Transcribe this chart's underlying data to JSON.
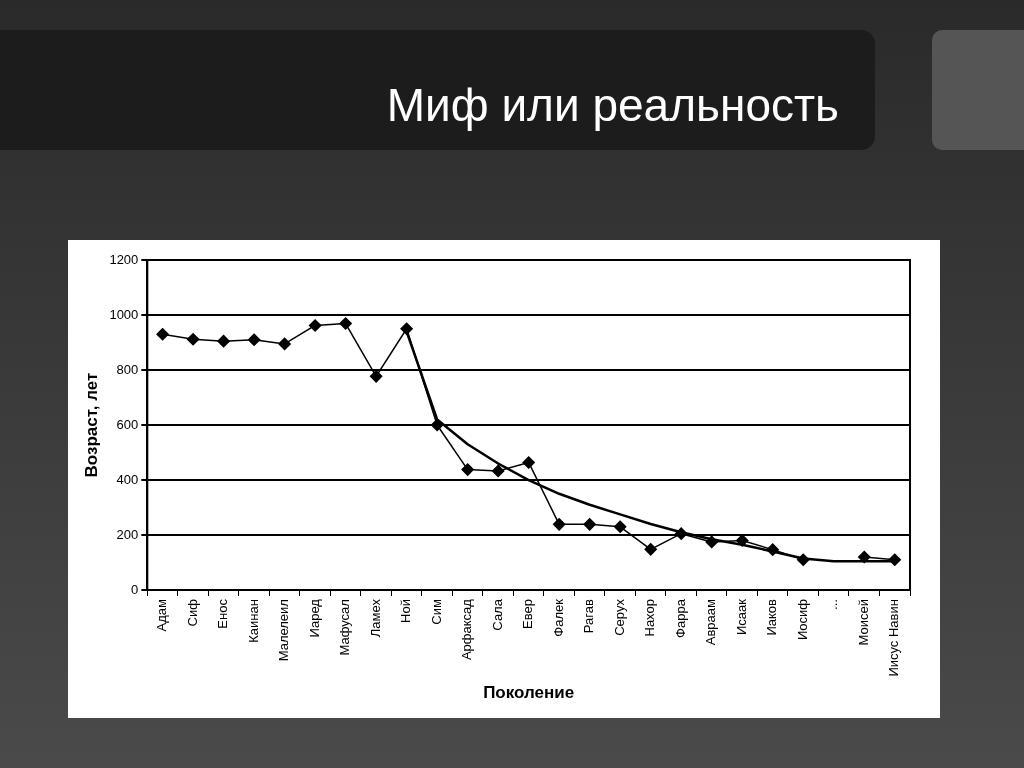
{
  "chart_data": {
    "type": "line",
    "title": "Миф или реальность",
    "xlabel": "Поколение",
    "ylabel": "Возраст, лет",
    "categories": [
      "Адам",
      "Сиф",
      "Енос",
      "Каинан",
      "Малелеил",
      "Иаред",
      "Мафусал",
      "Ламех",
      "Ной",
      "Сим",
      "Арфаксад",
      "Сала",
      "Евер",
      "Фалек",
      "Рагав",
      "Серух",
      "Нахор",
      "Фарра",
      "Авраам",
      "Исаак",
      "Иаков",
      "Иосиф",
      "...",
      "Моисей",
      "Иисус Навин"
    ],
    "series": [
      {
        "color": "#000000",
        "marker": "diamond",
        "values": [
          930,
          912,
          905,
          910,
          895,
          962,
          969,
          777,
          950,
          600,
          438,
          433,
          464,
          239,
          239,
          230,
          148,
          205,
          175,
          180,
          147,
          110,
          null,
          120,
          110
        ]
      },
      {
        "color": "#000000",
        "marker": "none",
        "values": [
          null,
          null,
          null,
          null,
          null,
          null,
          null,
          null,
          940,
          620,
          530,
          460,
          400,
          350,
          310,
          275,
          240,
          210,
          185,
          165,
          140,
          115,
          105,
          105,
          105
        ]
      }
    ],
    "ylim": [
      0,
      1200
    ],
    "yticks": [
      0,
      200,
      400,
      600,
      800,
      1000,
      1200
    ],
    "grid": "y",
    "legend": false
  }
}
